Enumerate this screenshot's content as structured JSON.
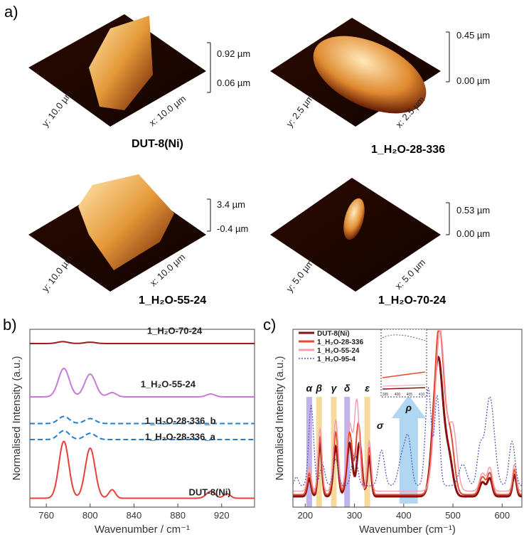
{
  "panels": {
    "a": "a)",
    "b": "b)",
    "c": "c)"
  },
  "afm": [
    {
      "name": "DUT-8(Ni)",
      "y_axis": "y: 10.0 µm",
      "x_axis": "x: 10.0 µm",
      "z_top": "0.92 µm",
      "z_bottom": "0.06 µm"
    },
    {
      "name": "1_H₂O-28-336",
      "y_axis": "y: 2.5 µm",
      "x_axis": "x: 2.5 µm",
      "z_top": "0.45 µm",
      "z_bottom": "0.00 µm"
    },
    {
      "name": "1_H₂O-55-24",
      "y_axis": "y: 10.0 µm",
      "x_axis": "x: 10.0 µm",
      "z_top": "3.4 µm",
      "z_bottom": "-0.4 µm"
    },
    {
      "name": "1_H₂O-70-24",
      "y_axis": "y: 5.0 µm",
      "x_axis": "x: 5.0 µm",
      "z_top": "0.53 µm",
      "z_bottom": "0.00 µm"
    }
  ],
  "colors": {
    "afm_dark": "#1a0500",
    "afm_mid": "#b8480a",
    "afm_light": "#ffe7b0"
  },
  "chart_data": [
    {
      "type": "line",
      "title": "",
      "xlabel": "Wavenumber / cm⁻¹",
      "ylabel": "Normalised Intensity (a.u.)",
      "xlim": [
        745,
        950
      ],
      "xticks": [
        760,
        800,
        840,
        880,
        920
      ],
      "series": [
        {
          "name": "1_H₂O-70-24",
          "color": "#9b1c1c",
          "style": "solid",
          "offset": 0.92,
          "scale": 0.03,
          "peaks": [
            [
              775,
              0.35,
              5
            ],
            [
              800,
              0.25,
              5
            ]
          ]
        },
        {
          "name": "1_H₂O-55-24",
          "color": "#c77ad8",
          "style": "solid",
          "offset": 0.62,
          "scale": 0.16,
          "peaks": [
            [
              776,
              1.0,
              5
            ],
            [
              800,
              0.8,
              5
            ],
            [
              820,
              0.15,
              4
            ],
            [
              910,
              0.1,
              4
            ]
          ]
        },
        {
          "name": "1_H₂O-28-336_b",
          "color": "#1f7fd1",
          "style": "dashed",
          "offset": 0.47,
          "scale": 0.04,
          "peaks": [
            [
              776,
              1.0,
              5
            ],
            [
              800,
              0.7,
              5
            ]
          ]
        },
        {
          "name": "1_H₂O-28-336_a",
          "color": "#1f7fd1",
          "style": "dashed",
          "offset": 0.38,
          "scale": 0.05,
          "peaks": [
            [
              776,
              1.0,
              5
            ],
            [
              800,
              0.7,
              5
            ]
          ]
        },
        {
          "name": "DUT-8(Ni)",
          "color": "#e8403a",
          "style": "solid",
          "offset": 0.05,
          "scale": 0.32,
          "peaks": [
            [
              776,
              1.0,
              4.5
            ],
            [
              800,
              0.88,
              4.5
            ],
            [
              820,
              0.15,
              3
            ],
            [
              910,
              0.12,
              4
            ],
            [
              925,
              0.08,
              3
            ]
          ]
        }
      ]
    },
    {
      "type": "line",
      "title": "",
      "xlabel": "Wavenumber (cm⁻¹)",
      "ylabel": "Normalised Intensity (a.u.)",
      "xlim": [
        175,
        640
      ],
      "xticks": [
        200,
        300,
        400,
        500,
        600
      ],
      "legend": [
        {
          "name": "DUT-8(Ni)",
          "color": "#8a1010",
          "style": "solid"
        },
        {
          "name": "1_H₂O-28-336",
          "color": "#e84a2e",
          "style": "solid"
        },
        {
          "name": "1_H₂O-55-24",
          "color": "#f0a0b0",
          "style": "solid"
        },
        {
          "name": "1_H₂O-95-4",
          "color": "#5a5ab8",
          "style": "dotted"
        }
      ],
      "bands": [
        {
          "label": "α",
          "center": 208,
          "color": "#b6a4e6"
        },
        {
          "label": "β",
          "center": 228,
          "color": "#f6d38a"
        },
        {
          "label": "γ",
          "center": 258,
          "color": "#f6d38a"
        },
        {
          "label": "δ",
          "center": 285,
          "color": "#b6a4e6"
        },
        {
          "label": "ε",
          "center": 326,
          "color": "#f6d38a"
        }
      ],
      "sigma_label": "σ",
      "rho_label": "ρ",
      "inset": {
        "ticks": [
          "395",
          "400",
          "405",
          "410"
        ]
      },
      "series": [
        {
          "name": "DUT-8(Ni)",
          "color": "#8a1010",
          "width": 3,
          "peaks": [
            [
              208,
              0.1,
              4
            ],
            [
              230,
              0.3,
              4
            ],
            [
              262,
              0.28,
              5
            ],
            [
              290,
              0.3,
              6
            ],
            [
              310,
              0.3,
              5
            ],
            [
              330,
              0.22,
              4
            ],
            [
              470,
              0.78,
              10
            ],
            [
              492,
              0.2,
              8
            ],
            [
              560,
              0.08,
              6
            ],
            [
              575,
              0.1,
              5
            ],
            [
              625,
              0.12,
              4
            ]
          ],
          "base": 0.06
        },
        {
          "name": "1_H₂O-28-336",
          "color": "#e84a2e",
          "width": 2,
          "peaks": [
            [
              208,
              0.12,
              4
            ],
            [
              230,
              0.32,
              4
            ],
            [
              262,
              0.35,
              5
            ],
            [
              290,
              0.35,
              6
            ],
            [
              308,
              0.4,
              5
            ],
            [
              330,
              0.26,
              4
            ],
            [
              472,
              0.95,
              10
            ],
            [
              495,
              0.3,
              8
            ],
            [
              560,
              0.1,
              6
            ],
            [
              575,
              0.12,
              5
            ],
            [
              625,
              0.14,
              4
            ]
          ],
          "base": 0.07
        },
        {
          "name": "1_H₂O-55-24",
          "color": "#f0a0b0",
          "width": 1.5,
          "peaks": [
            [
              208,
              0.14,
              4
            ],
            [
              230,
              0.35,
              4
            ],
            [
              262,
              0.4,
              5
            ],
            [
              290,
              0.38,
              6
            ],
            [
              305,
              0.5,
              5
            ],
            [
              330,
              0.28,
              4
            ],
            [
              474,
              0.9,
              10
            ],
            [
              500,
              0.35,
              8
            ],
            [
              560,
              0.1,
              6
            ],
            [
              575,
              0.13,
              5
            ],
            [
              625,
              0.15,
              4
            ]
          ],
          "base": 0.09
        },
        {
          "name": "1_H₂O-95-4",
          "color": "#5a5ab8",
          "width": 1.3,
          "dotted": true,
          "peaks": [
            [
              182,
              0.05,
              4
            ],
            [
              212,
              0.45,
              5
            ],
            [
              235,
              0.12,
              5
            ],
            [
              262,
              0.15,
              5
            ],
            [
              300,
              0.18,
              6
            ],
            [
              355,
              0.2,
              6
            ],
            [
              398,
              0.18,
              8
            ],
            [
              410,
              0.22,
              6
            ],
            [
              450,
              0.55,
              6
            ],
            [
              468,
              0.5,
              5
            ],
            [
              520,
              0.12,
              8
            ],
            [
              555,
              0.2,
              6
            ],
            [
              575,
              0.5,
              9
            ],
            [
              620,
              0.25,
              6
            ]
          ],
          "base": 0.12
        }
      ]
    }
  ]
}
